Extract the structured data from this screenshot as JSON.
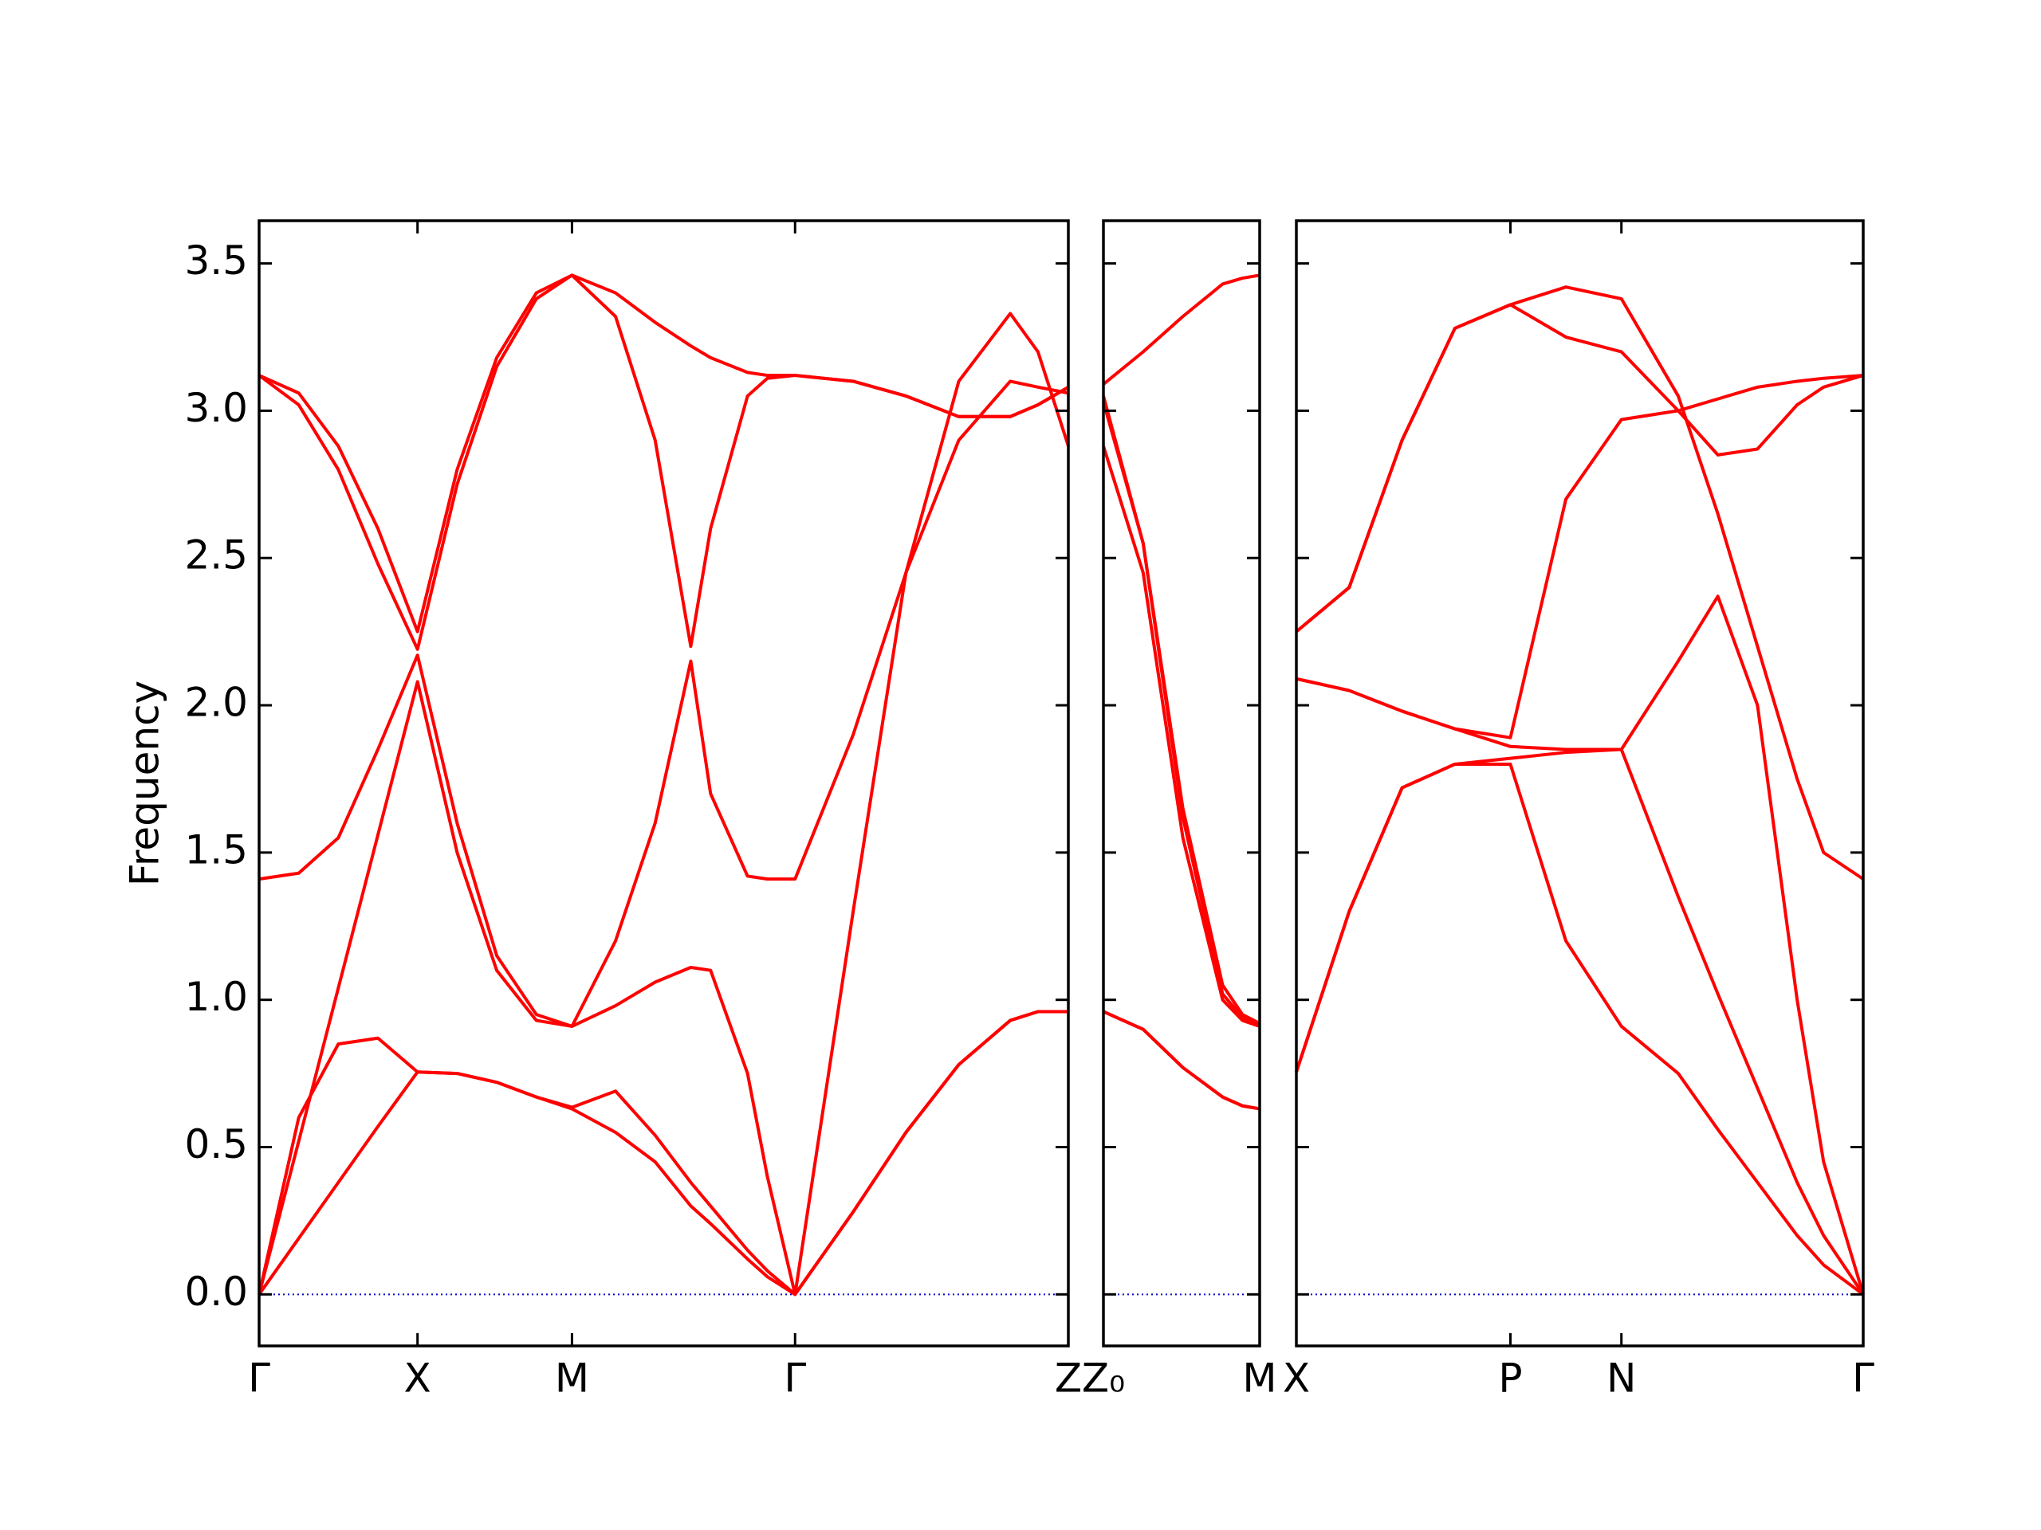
{
  "chart_data": [
    {
      "type": "line",
      "ylabel": "Frequency",
      "yticklabels": true,
      "xlim": [
        0,
        6.13
      ],
      "ylim": [
        -0.175,
        3.645
      ],
      "xticks": [
        {
          "value": 0,
          "label": "Γ"
        },
        {
          "value": 1.2,
          "label": "X"
        },
        {
          "value": 2.37,
          "label": "M"
        },
        {
          "value": 4.06,
          "label": "Γ"
        },
        {
          "value": 6.13,
          "label": "Z"
        }
      ],
      "yticks": [
        {
          "value": 0,
          "label": "0.0"
        },
        0.5,
        {
          "value": 1,
          "label": "1.0"
        },
        1.5,
        {
          "value": 2,
          "label": "2.0"
        },
        2.5,
        {
          "value": 3,
          "label": "3.0"
        },
        3.5
      ],
      "x": [
        0,
        0.3,
        0.6,
        0.9,
        1.2,
        1.5,
        1.8,
        2.1,
        2.37,
        2.7,
        3.0,
        3.27,
        3.42,
        3.7,
        3.85,
        4.06,
        4.5,
        4.9,
        5.3,
        5.69,
        5.9,
        6.13
      ],
      "series": [
        {
          "color": "#ff0000",
          "values": [
            0,
            0.19,
            0.38,
            0.57,
            0.755,
            0.75,
            0.72,
            0.67,
            0.63,
            0.55,
            0.45,
            0.3,
            0.24,
            0.12,
            0.06,
            0,
            0.28,
            0.55,
            0.78,
            0.93,
            0.96,
            0.96
          ]
        },
        {
          "color": "#ff0000",
          "values": [
            0,
            0.6,
            0.85,
            0.87,
            0.755,
            0.75,
            0.72,
            0.67,
            0.635,
            0.69,
            0.54,
            0.38,
            0.3,
            0.15,
            0.08,
            0,
            0.28,
            0.55,
            0.78,
            0.93,
            0.96,
            0.96
          ]
        },
        {
          "color": "#ff0000",
          "values": [
            0,
            0.52,
            1.04,
            1.56,
            2.08,
            1.5,
            1.1,
            0.93,
            0.91,
            0.98,
            1.06,
            1.11,
            1.1,
            0.75,
            0.4,
            0,
            1.3,
            2.45,
            3.1,
            3.33,
            3.2,
            2.88
          ]
        },
        {
          "color": "#ff0000",
          "values": [
            1.41,
            1.43,
            1.55,
            1.85,
            2.17,
            1.6,
            1.15,
            0.95,
            0.91,
            1.2,
            1.6,
            2.15,
            1.7,
            1.42,
            1.41,
            1.41,
            1.9,
            2.45,
            2.9,
            3.1,
            3.08,
            3.06
          ]
        },
        {
          "color": "#ff0000",
          "values": [
            3.12,
            3.02,
            2.8,
            2.48,
            2.19,
            2.75,
            3.15,
            3.38,
            3.46,
            3.32,
            2.9,
            2.2,
            2.6,
            3.05,
            3.11,
            3.12,
            3.1,
            3.05,
            2.98,
            2.98,
            3.02,
            3.08
          ]
        },
        {
          "color": "#ff0000",
          "values": [
            3.12,
            3.06,
            2.88,
            2.6,
            2.25,
            2.8,
            3.18,
            3.4,
            3.46,
            3.4,
            3.3,
            3.22,
            3.18,
            3.13,
            3.12,
            3.12,
            3.1,
            3.05,
            2.98,
            2.98,
            3.02,
            3.08
          ]
        }
      ]
    },
    {
      "type": "line",
      "yticklabels": false,
      "xlim": [
        6.13,
        7.31
      ],
      "ylim": [
        -0.175,
        3.645
      ],
      "xticks": [
        {
          "value": 6.13,
          "label": "Z₀"
        },
        {
          "value": 7.31,
          "label": "M"
        }
      ],
      "yticks": [
        0,
        0.5,
        1,
        1.5,
        2,
        2.5,
        3,
        3.5
      ],
      "x": [
        6.13,
        6.43,
        6.73,
        7.03,
        7.18,
        7.31
      ],
      "series": [
        {
          "color": "#ff0000",
          "values": [
            0.96,
            0.9,
            0.77,
            0.67,
            0.64,
            0.63
          ]
        },
        {
          "color": "#ff0000",
          "values": [
            0.96,
            0.9,
            0.77,
            0.67,
            0.64,
            0.63
          ]
        },
        {
          "color": "#ff0000",
          "values": [
            2.88,
            2.45,
            1.55,
            1.0,
            0.93,
            0.91
          ]
        },
        {
          "color": "#ff0000",
          "values": [
            3.03,
            2.55,
            1.65,
            1.05,
            0.95,
            0.92
          ]
        },
        {
          "color": "#ff0000",
          "values": [
            3.05,
            2.55,
            1.62,
            1.02,
            0.94,
            0.91
          ]
        },
        {
          "color": "#ff0000",
          "values": [
            3.09,
            3.2,
            3.32,
            3.43,
            3.45,
            3.46
          ]
        }
      ]
    },
    {
      "type": "line",
      "yticklabels": false,
      "xlim": [
        7.31,
        11.6
      ],
      "ylim": [
        -0.175,
        3.645
      ],
      "xticks": [
        {
          "value": 7.31,
          "label": "X"
        },
        {
          "value": 8.93,
          "label": "P"
        },
        {
          "value": 9.77,
          "label": "N"
        },
        {
          "value": 11.6,
          "label": "Γ"
        }
      ],
      "yticks": [
        0,
        0.5,
        1,
        1.5,
        2,
        2.5,
        3,
        3.5
      ],
      "x": [
        7.31,
        7.71,
        8.11,
        8.51,
        8.93,
        9.35,
        9.77,
        10.2,
        10.5,
        10.8,
        11.1,
        11.3,
        11.6
      ],
      "series": [
        {
          "color": "#ff0000",
          "values": [
            0.755,
            1.3,
            1.72,
            1.8,
            1.8,
            1.2,
            0.91,
            0.75,
            0.56,
            0.38,
            0.2,
            0.1,
            0
          ]
        },
        {
          "color": "#ff0000",
          "values": [
            0.755,
            1.3,
            1.72,
            1.8,
            1.82,
            1.84,
            1.85,
            1.35,
            1.02,
            0.7,
            0.38,
            0.2,
            0
          ]
        },
        {
          "color": "#ff0000",
          "values": [
            2.09,
            2.05,
            1.98,
            1.92,
            1.89,
            2.7,
            2.97,
            3.0,
            3.04,
            3.08,
            3.1,
            3.11,
            3.12
          ]
        },
        {
          "color": "#ff0000",
          "values": [
            2.09,
            2.05,
            1.98,
            1.92,
            1.86,
            1.85,
            1.85,
            2.15,
            2.37,
            2.0,
            1.0,
            0.45,
            0
          ]
        },
        {
          "color": "#ff0000",
          "values": [
            2.25,
            2.4,
            2.9,
            3.28,
            3.36,
            3.25,
            3.2,
            3.0,
            2.85,
            2.87,
            3.02,
            3.08,
            3.12
          ]
        },
        {
          "color": "#ff0000",
          "values": [
            2.25,
            2.4,
            2.9,
            3.28,
            3.36,
            3.42,
            3.38,
            3.05,
            2.65,
            2.2,
            1.75,
            1.5,
            1.41
          ]
        }
      ]
    }
  ]
}
